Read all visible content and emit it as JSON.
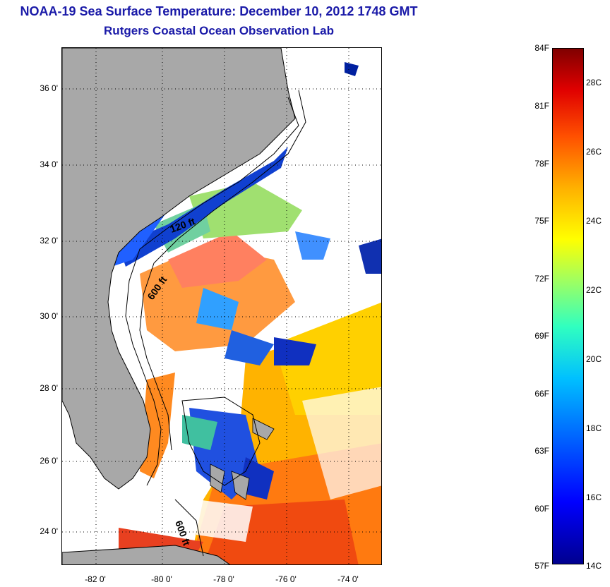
{
  "title": {
    "line1": "NOAA-19 Sea Surface Temperature:  December 10, 2012 1748 GMT",
    "line2": "Rutgers Coastal Ocean Observation Lab"
  },
  "map": {
    "lon_range": [
      -83,
      -73
    ],
    "lat_range": [
      23,
      37
    ],
    "lat_ticks": [
      "36 0'",
      "34 0'",
      "32 0'",
      "30 0'",
      "28 0'",
      "26 0'",
      "24 0'"
    ],
    "lon_ticks": [
      "-82 0'",
      "-80 0'",
      "-78 0'",
      "-76 0'",
      "-74 0'"
    ],
    "grid": "dotted",
    "land_color": "#a8a8a8",
    "cloud_color": "#ffffff",
    "isobath_labels": [
      "120 ft",
      "600 ft",
      "600 ft"
    ]
  },
  "colorbar": {
    "fahrenheit_labels": [
      "84F",
      "81F",
      "78F",
      "75F",
      "72F",
      "69F",
      "66F",
      "63F",
      "60F",
      "57F"
    ],
    "celsius_labels": [
      "28C",
      "26C",
      "24C",
      "22C",
      "20C",
      "18C",
      "16C",
      "14C"
    ],
    "range_f": [
      57,
      84
    ],
    "range_c": [
      14,
      29
    ]
  }
}
